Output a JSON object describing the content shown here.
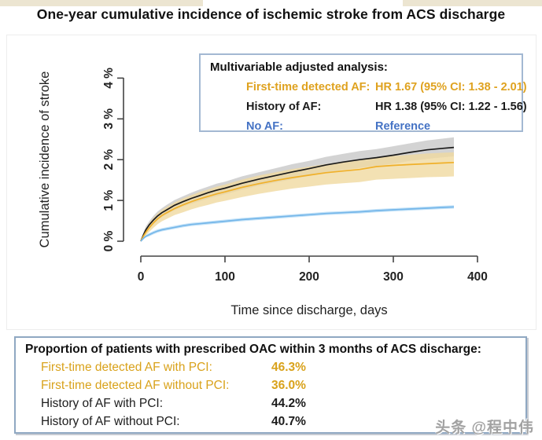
{
  "title": "One-year cumulative incidence of ischemic stroke from ACS discharge",
  "watermark": "头条 @程中伟",
  "colors": {
    "gold_line": "#f0b02a",
    "gold_text": "#dfa21f",
    "black_line": "#1a1a1a",
    "blue_line": "#74b6e9",
    "blue_text": "#4472c4",
    "gold_band": "#f0d9a0",
    "gray_band": "#c8c8c8",
    "blue_band": "#bfe0f7",
    "legend_border": "#a3b8d2",
    "table_border": "#8fa8c2"
  },
  "legend": {
    "title": "Multivariable adjusted analysis:",
    "rows": [
      {
        "label": "First-time detected AF:",
        "value": "HR 1.67 (95% CI: 1.38 - 2.01)",
        "color": "gold"
      },
      {
        "label": "History of AF:",
        "value": "HR 1.38 (95% CI: 1.22 - 1.56)",
        "color": "black"
      },
      {
        "label": "No AF:",
        "value": "Reference",
        "color": "blue"
      }
    ]
  },
  "chart_data": {
    "type": "line",
    "title": "One-year cumulative incidence of ischemic stroke from ACS discharge",
    "xlabel": "Time since discharge, days",
    "ylabel": "Cumulative incidence of stroke",
    "xlim": [
      0,
      400
    ],
    "ylim": [
      0,
      4
    ],
    "grid": false,
    "legend_position": "top-right box",
    "x_tick_labels": [
      "0",
      "100",
      "200",
      "300",
      "400"
    ],
    "y_tick_labels": [
      "0 %",
      "1 %",
      "2 %",
      "3 %",
      "4 %"
    ],
    "x_tick_values": [
      0,
      100,
      200,
      300,
      400
    ],
    "y_tick_values": [
      0,
      1,
      2,
      3,
      4
    ],
    "x": [
      0,
      3,
      6,
      10,
      15,
      20,
      25,
      30,
      40,
      50,
      60,
      70,
      80,
      90,
      100,
      120,
      140,
      160,
      180,
      200,
      220,
      240,
      260,
      280,
      300,
      320,
      340,
      360,
      372
    ],
    "series": [
      {
        "name": "History of AF",
        "style": "black solid line with gray confidence band",
        "values": [
          0,
          0.15,
          0.28,
          0.4,
          0.52,
          0.62,
          0.7,
          0.76,
          0.88,
          0.97,
          1.05,
          1.12,
          1.19,
          1.25,
          1.3,
          1.42,
          1.52,
          1.61,
          1.7,
          1.78,
          1.87,
          1.94,
          2.0,
          2.05,
          2.11,
          2.18,
          2.24,
          2.28,
          2.3
        ],
        "ci_upper": [
          0,
          0.21,
          0.36,
          0.49,
          0.62,
          0.73,
          0.81,
          0.88,
          1.01,
          1.1,
          1.19,
          1.27,
          1.34,
          1.41,
          1.46,
          1.59,
          1.69,
          1.79,
          1.89,
          1.97,
          2.07,
          2.14,
          2.21,
          2.26,
          2.33,
          2.4,
          2.47,
          2.52,
          2.55
        ],
        "ci_lower": [
          0,
          0.1,
          0.21,
          0.31,
          0.42,
          0.52,
          0.59,
          0.65,
          0.76,
          0.85,
          0.92,
          0.98,
          1.05,
          1.1,
          1.15,
          1.26,
          1.36,
          1.44,
          1.52,
          1.6,
          1.68,
          1.75,
          1.8,
          1.85,
          1.9,
          1.97,
          2.02,
          2.06,
          2.08
        ]
      },
      {
        "name": "First-time detected AF",
        "style": "gold solid line with tan confidence band",
        "values": [
          0,
          0.12,
          0.22,
          0.33,
          0.45,
          0.55,
          0.63,
          0.69,
          0.8,
          0.89,
          0.97,
          1.04,
          1.1,
          1.16,
          1.21,
          1.32,
          1.41,
          1.49,
          1.56,
          1.62,
          1.68,
          1.72,
          1.76,
          1.83,
          1.86,
          1.88,
          1.9,
          1.92,
          1.93
        ],
        "ci_upper": [
          0,
          0.18,
          0.31,
          0.44,
          0.57,
          0.68,
          0.77,
          0.83,
          0.95,
          1.05,
          1.13,
          1.21,
          1.27,
          1.34,
          1.39,
          1.51,
          1.61,
          1.69,
          1.77,
          1.83,
          1.89,
          1.94,
          1.98,
          2.05,
          2.09,
          2.12,
          2.15,
          2.17,
          2.18
        ],
        "ci_lower": [
          0,
          0.07,
          0.14,
          0.23,
          0.33,
          0.42,
          0.49,
          0.54,
          0.64,
          0.71,
          0.78,
          0.84,
          0.89,
          0.95,
          0.99,
          1.08,
          1.16,
          1.23,
          1.29,
          1.34,
          1.39,
          1.42,
          1.45,
          1.51,
          1.53,
          1.55,
          1.57,
          1.58,
          1.59
        ]
      },
      {
        "name": "No AF",
        "style": "light blue solid line (reference), thin band",
        "values": [
          0,
          0.07,
          0.12,
          0.16,
          0.21,
          0.25,
          0.28,
          0.3,
          0.34,
          0.38,
          0.41,
          0.43,
          0.45,
          0.47,
          0.49,
          0.53,
          0.56,
          0.59,
          0.62,
          0.65,
          0.68,
          0.7,
          0.72,
          0.75,
          0.77,
          0.79,
          0.81,
          0.83,
          0.84
        ],
        "ci_upper": [
          0,
          0.1,
          0.15,
          0.2,
          0.25,
          0.29,
          0.32,
          0.34,
          0.38,
          0.42,
          0.45,
          0.47,
          0.49,
          0.51,
          0.53,
          0.57,
          0.6,
          0.63,
          0.66,
          0.69,
          0.72,
          0.74,
          0.76,
          0.79,
          0.81,
          0.83,
          0.85,
          0.87,
          0.88
        ],
        "ci_lower": [
          0,
          0.04,
          0.09,
          0.12,
          0.17,
          0.21,
          0.24,
          0.26,
          0.3,
          0.34,
          0.37,
          0.39,
          0.41,
          0.43,
          0.45,
          0.49,
          0.52,
          0.55,
          0.58,
          0.61,
          0.64,
          0.66,
          0.68,
          0.71,
          0.73,
          0.75,
          0.77,
          0.79,
          0.8
        ]
      }
    ]
  },
  "oac_table": {
    "header": "Proportion of patients with prescribed OAC within 3 months of ACS discharge:",
    "rows": [
      {
        "label": "First-time detected AF with PCI:",
        "value": "46.3%",
        "color": "gold"
      },
      {
        "label": "First-time detected AF without PCI:",
        "value": "36.0%",
        "color": "gold"
      },
      {
        "label": "History of AF with PCI:",
        "value": "44.2%",
        "color": "black"
      },
      {
        "label": "History of AF without PCI:",
        "value": "40.7%",
        "color": "black"
      }
    ]
  }
}
